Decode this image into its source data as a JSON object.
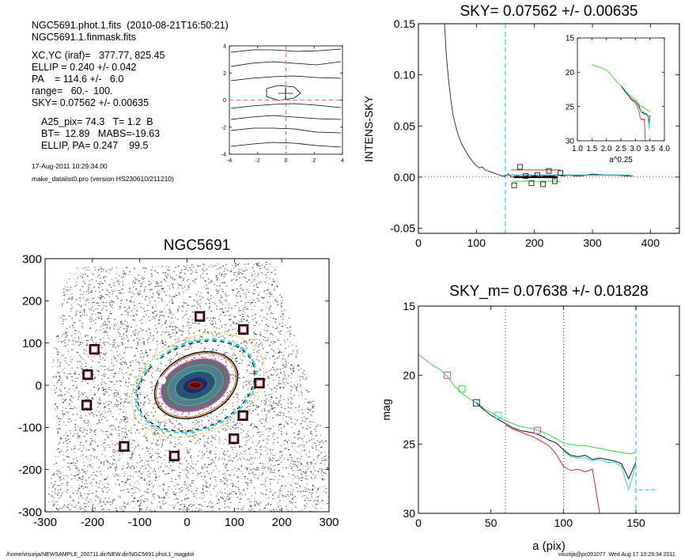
{
  "header": {
    "line1": "NGC5691.phot.1.fits  (2010-08-21T16:50:21)",
    "line2": "NGC5691.1.finmask.fits",
    "params": [
      "XC,YC (iraf)=   377.77, 825.45",
      "ELLIP = 0.240 +/- 0.042",
      "PA    = 114.6 +/-   6.0",
      "range=   60.-  100.",
      "SKY= 0.07562 +/- 0.00635"
    ],
    "results": [
      "A25_pix= 74.3   T= 1.2  B",
      "BT=  12.89   MABS=-19.63",
      "ELLIP, PA= 0.247    99.5"
    ],
    "date": "17-Aug-2011 10:29:34.00",
    "program": "make_datalist0.pro (version HS230610/211210)"
  },
  "footer": {
    "left": "/home/visurija/NEWSAMPLE_200711.dir/NEW.dir/NGC5691.phot.1_magplot",
    "right": "visurija@pc091077  Wed Aug 17 10:29:34 2011"
  },
  "colors": {
    "green": "#33dd33",
    "red": "#ee2222",
    "black": "#111111",
    "cyan": "#22dddd",
    "blue": "#2222cc",
    "pink": "#dd44dd",
    "dashed_red": "#ff6666",
    "dashed_cyan": "#33ddee"
  },
  "chart_data": [
    {
      "id": "contour",
      "type": "line",
      "title": "",
      "xlim": [
        -4,
        4
      ],
      "ylim": [
        -4,
        4
      ],
      "xticks": [
        "-4",
        "-2",
        "0",
        "2",
        "4"
      ],
      "yticks": [
        "-4",
        "-2",
        "0",
        "2",
        "4"
      ]
    },
    {
      "id": "image",
      "type": "scatter",
      "title": "NGC5691",
      "xlim": [
        -300,
        300
      ],
      "ylim": [
        -300,
        300
      ],
      "xticks": [
        "-300",
        "-200",
        "-100",
        "0",
        "100",
        "200",
        "300"
      ],
      "yticks": [
        "-300",
        "-200",
        "-100",
        "0",
        "100",
        "200",
        "300"
      ],
      "box_markers": [
        [
          -196,
          85
        ],
        [
          -210,
          25
        ],
        [
          -212,
          -47
        ],
        [
          -133,
          -145
        ],
        [
          -27,
          -168
        ],
        [
          27,
          163
        ],
        [
          119,
          132
        ],
        [
          153,
          5
        ],
        [
          118,
          -72
        ],
        [
          99,
          -127
        ]
      ]
    },
    {
      "id": "sky",
      "type": "line",
      "title": "SKY= 0.07562 +/- 0.00635",
      "ylabel": "INTENS-SKY",
      "xlim": [
        0,
        450
      ],
      "ylim": [
        -0.055,
        0.15
      ],
      "xticks": [
        "0",
        "100",
        "200",
        "300",
        "400"
      ],
      "yticks": [
        "-0.05",
        "0.00",
        "0.05",
        "0.10",
        "0.15"
      ],
      "profile": {
        "x": [
          45,
          48,
          52,
          56,
          60,
          65,
          70,
          75,
          80,
          85,
          90,
          95,
          100,
          105,
          110,
          115,
          120,
          125,
          130,
          135,
          140,
          145,
          150,
          155,
          160,
          170,
          180,
          190,
          200,
          210,
          220,
          230,
          240,
          250,
          260,
          270,
          280,
          290,
          300,
          320,
          340,
          360,
          370
        ],
        "y": [
          0.15,
          0.12,
          0.095,
          0.075,
          0.06,
          0.048,
          0.039,
          0.032,
          0.027,
          0.022,
          0.018,
          0.014,
          0.011,
          0.009,
          0.01,
          0.007,
          0.006,
          0.005,
          0.004,
          0.003,
          0.002,
          0.001,
          0.001,
          0.003,
          0.0,
          0.001,
          0.0,
          0.002,
          0.001,
          0.002,
          0.001,
          0.001,
          0.002,
          0.001,
          0.002,
          0.001,
          0.001,
          0.002,
          0.003,
          0.002,
          0.002,
          0.001,
          0.001
        ]
      },
      "sky_points": {
        "x": [
          165,
          175,
          185,
          195,
          205,
          215,
          225,
          235,
          245
        ],
        "y": [
          -0.008,
          0.01,
          0.001,
          -0.006,
          0.002,
          -0.007,
          0.006,
          -0.004,
          0.004
        ]
      },
      "vline_x": 150,
      "inset": {
        "xlabel": "a^0.25",
        "xlim": [
          1.0,
          4.0
        ],
        "ylim": [
          15,
          30
        ],
        "xticks": [
          "1.0",
          "1.5",
          "2.0",
          "2.5",
          "3.0",
          "3.5",
          "4.0"
        ],
        "yticks": [
          "15",
          "20",
          "25",
          "30"
        ]
      }
    },
    {
      "id": "mag",
      "type": "line",
      "title": "SKY_m=  0.07638 +/- 0.01828",
      "xlabel": "a (pix)",
      "ylabel": "mag",
      "xlim": [
        0,
        180
      ],
      "ylim": [
        15,
        30
      ],
      "xticks": [
        "0",
        "50",
        "100",
        "150"
      ],
      "yticks": [
        "15",
        "20",
        "25",
        "30"
      ],
      "vlines_dotted": [
        60,
        100
      ],
      "vline_dashed": 150,
      "series": [
        {
          "color": "green",
          "x": [
            0,
            5,
            10,
            15,
            20,
            25,
            30,
            35,
            40,
            45,
            50,
            55,
            60,
            65,
            70,
            75,
            80,
            85,
            90,
            95,
            100,
            105,
            110,
            115,
            120,
            125,
            130,
            135,
            140,
            145,
            150
          ],
          "y": [
            18.5,
            18.9,
            19.3,
            19.6,
            20.1,
            20.8,
            21.3,
            21.7,
            22.0,
            22.4,
            22.7,
            23.0,
            23.3,
            23.5,
            23.7,
            23.8,
            23.9,
            24.1,
            24.3,
            24.6,
            24.9,
            25.0,
            25.1,
            25.1,
            25.2,
            25.3,
            25.4,
            25.5,
            25.6,
            25.7,
            25.6
          ]
        },
        {
          "color": "black",
          "x": [
            40,
            45,
            50,
            55,
            60,
            65,
            70,
            75,
            80,
            85,
            90,
            95,
            100,
            105,
            110,
            115,
            120,
            125,
            130,
            135,
            140,
            145,
            150
          ],
          "y": [
            22.0,
            22.5,
            22.9,
            23.2,
            23.5,
            23.8,
            24.0,
            24.1,
            24.2,
            24.4,
            24.7,
            24.9,
            25.4,
            25.8,
            25.9,
            25.8,
            26.1,
            26.0,
            26.1,
            26.2,
            26.4,
            27.5,
            26.3
          ]
        },
        {
          "color": "cyan",
          "x": [
            100,
            105,
            110,
            115,
            120,
            125,
            130,
            135,
            140,
            145,
            150
          ],
          "y": [
            25.5,
            25.9,
            26.0,
            26.0,
            26.2,
            26.1,
            26.3,
            26.3,
            26.6,
            28.3,
            26.5
          ]
        },
        {
          "color": "red",
          "x": [
            60,
            65,
            70,
            75,
            80,
            85,
            90,
            95,
            100,
            105,
            110,
            115,
            120,
            125
          ],
          "y": [
            23.6,
            23.9,
            24.1,
            24.3,
            24.5,
            24.8,
            25.1,
            25.7,
            26.6,
            26.9,
            26.8,
            27.0,
            26.8,
            30.0
          ]
        }
      ],
      "markers": [
        {
          "x": 20,
          "y": 20.0,
          "color": "pink"
        },
        {
          "x": 30,
          "y": 21.0,
          "color": "green"
        },
        {
          "x": 40,
          "y": 22.0,
          "color": "blue"
        },
        {
          "x": 55,
          "y": 22.9,
          "color": "cyan"
        },
        {
          "x": 82,
          "y": 24.0,
          "color": "pink"
        }
      ]
    }
  ]
}
